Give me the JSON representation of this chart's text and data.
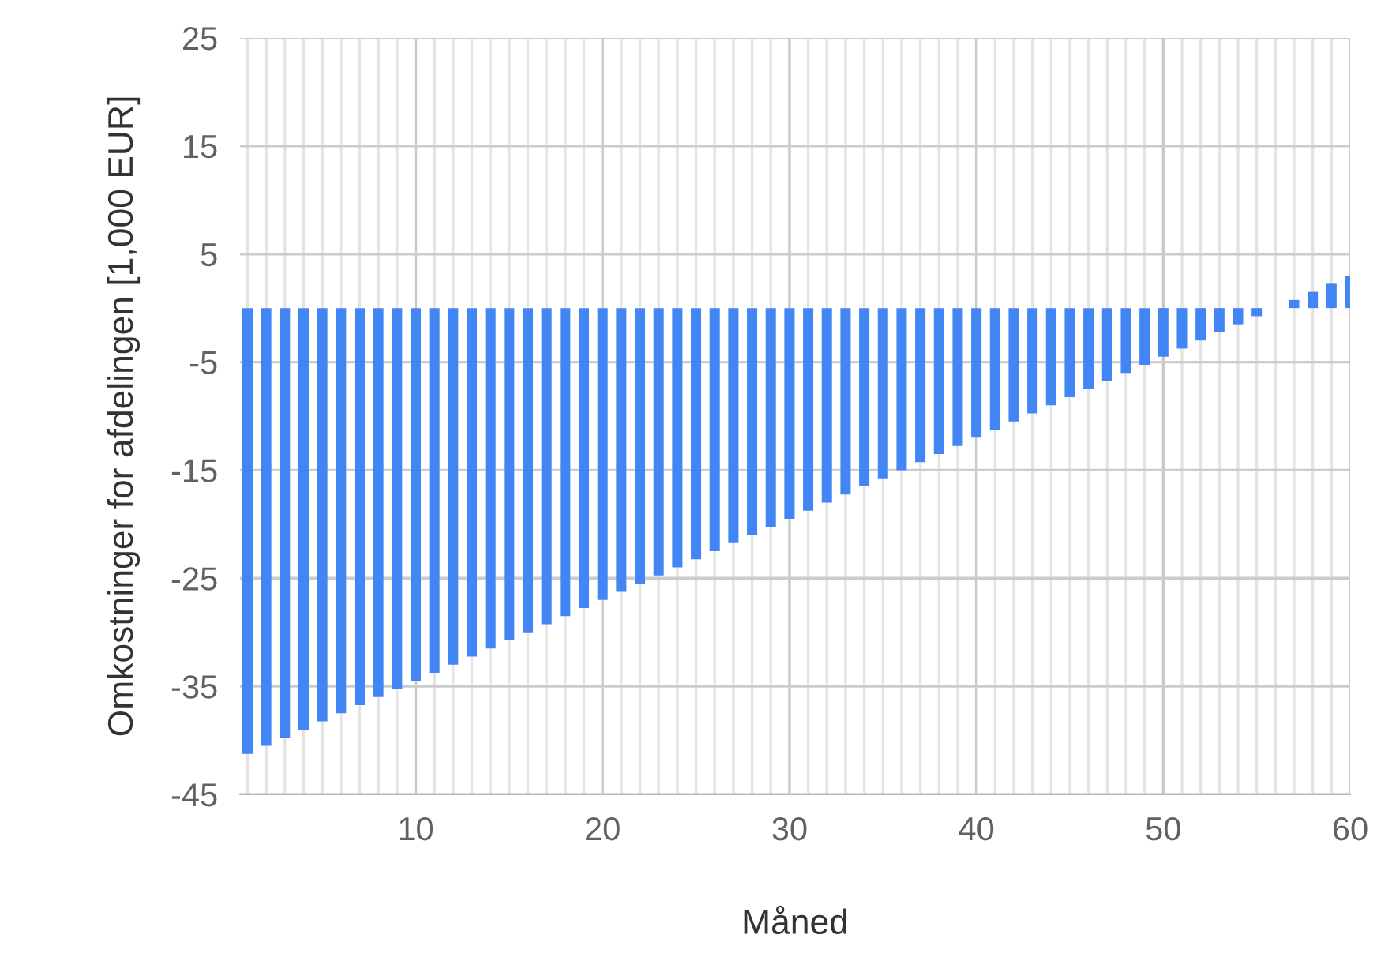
{
  "chart_data": {
    "type": "bar",
    "xlabel": "Måned",
    "ylabel": "Omkostninger for afdelingen [1,000 EUR]",
    "x": [
      1,
      2,
      3,
      4,
      5,
      6,
      7,
      8,
      9,
      10,
      11,
      12,
      13,
      14,
      15,
      16,
      17,
      18,
      19,
      20,
      21,
      22,
      23,
      24,
      25,
      26,
      27,
      28,
      29,
      30,
      31,
      32,
      33,
      34,
      35,
      36,
      37,
      38,
      39,
      40,
      41,
      42,
      43,
      44,
      45,
      46,
      47,
      48,
      49,
      50,
      51,
      52,
      53,
      54,
      55,
      56,
      57,
      58,
      59,
      60
    ],
    "values": [
      -41.25,
      -40.5,
      -39.75,
      -39,
      -38.25,
      -37.5,
      -36.75,
      -36,
      -35.25,
      -34.5,
      -33.75,
      -33,
      -32.25,
      -31.5,
      -30.75,
      -30,
      -29.25,
      -28.5,
      -27.75,
      -27,
      -26.25,
      -25.5,
      -24.75,
      -24,
      -23.25,
      -22.5,
      -21.75,
      -21,
      -20.25,
      -19.5,
      -18.75,
      -18,
      -17.25,
      -16.5,
      -15.75,
      -15,
      -14.25,
      -13.5,
      -12.75,
      -12,
      -11.25,
      -10.5,
      -9.75,
      -9,
      -8.25,
      -7.5,
      -6.75,
      -6,
      -5.25,
      -4.5,
      -3.75,
      -3,
      -2.25,
      -1.5,
      -0.75,
      0,
      0.75,
      1.5,
      2.25,
      3
    ],
    "color": "#4285f4",
    "xlim": [
      0.6,
      60
    ],
    "xticks": [
      {
        "value": 1,
        "label": null
      },
      {
        "value": 2,
        "label": null
      },
      {
        "value": 3,
        "label": null
      },
      {
        "value": 4,
        "label": null
      },
      {
        "value": 5,
        "label": null
      },
      {
        "value": 6,
        "label": null
      },
      {
        "value": 7,
        "label": null
      },
      {
        "value": 8,
        "label": null
      },
      {
        "value": 9,
        "label": null
      },
      10,
      {
        "value": 11,
        "label": null
      },
      {
        "value": 12,
        "label": null
      },
      {
        "value": 13,
        "label": null
      },
      {
        "value": 14,
        "label": null
      },
      {
        "value": 15,
        "label": null
      },
      {
        "value": 16,
        "label": null
      },
      {
        "value": 17,
        "label": null
      },
      {
        "value": 18,
        "label": null
      },
      {
        "value": 19,
        "label": null
      },
      20,
      {
        "value": 21,
        "label": null
      },
      {
        "value": 22,
        "label": null
      },
      {
        "value": 23,
        "label": null
      },
      {
        "value": 24,
        "label": null
      },
      {
        "value": 25,
        "label": null
      },
      {
        "value": 26,
        "label": null
      },
      {
        "value": 27,
        "label": null
      },
      {
        "value": 28,
        "label": null
      },
      {
        "value": 29,
        "label": null
      },
      30,
      {
        "value": 31,
        "label": null
      },
      {
        "value": 32,
        "label": null
      },
      {
        "value": 33,
        "label": null
      },
      {
        "value": 34,
        "label": null
      },
      {
        "value": 35,
        "label": null
      },
      {
        "value": 36,
        "label": null
      },
      {
        "value": 37,
        "label": null
      },
      {
        "value": 38,
        "label": null
      },
      {
        "value": 39,
        "label": null
      },
      40,
      {
        "value": 41,
        "label": null
      },
      {
        "value": 42,
        "label": null
      },
      {
        "value": 43,
        "label": null
      },
      {
        "value": 44,
        "label": null
      },
      {
        "value": 45,
        "label": null
      },
      {
        "value": 46,
        "label": null
      },
      {
        "value": 47,
        "label": null
      },
      {
        "value": 48,
        "label": null
      },
      {
        "value": 49,
        "label": null
      },
      50,
      {
        "value": 51,
        "label": null
      },
      {
        "value": 52,
        "label": null
      },
      {
        "value": 53,
        "label": null
      },
      {
        "value": 54,
        "label": null
      },
      {
        "value": 55,
        "label": null
      },
      {
        "value": 56,
        "label": null
      },
      {
        "value": 57,
        "label": null
      },
      {
        "value": 58,
        "label": null
      },
      {
        "value": 59,
        "label": null
      },
      60
    ],
    "ylim": [
      -45,
      25
    ],
    "yticks": [
      -45,
      -35,
      -25,
      -15,
      -5,
      5,
      15,
      25
    ],
    "grid": true
  }
}
